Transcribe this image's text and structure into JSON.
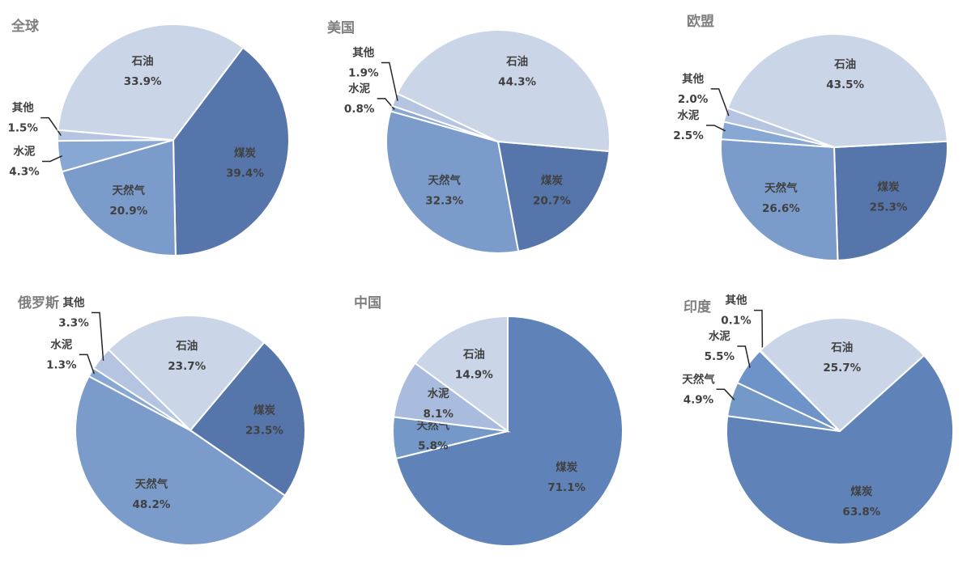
{
  "chart_data": [
    {
      "type": "pie",
      "title": "全球",
      "startangle": 37,
      "categories": [
        "煤炭",
        "天然气",
        "水泥",
        "其他",
        "石油"
      ],
      "values": [
        39.4,
        20.9,
        4.3,
        1.5,
        33.9
      ],
      "value_labels": [
        "39.4%",
        "20.9%",
        "4.3%",
        "1.5%",
        "33.9%"
      ],
      "colors": [
        "#5676ab",
        "#7b9ccb",
        "#88a8d4",
        "#b5c4e0",
        "#cbd5e8"
      ]
    },
    {
      "type": "pie",
      "title": "美国",
      "startangle": 95,
      "categories": [
        "煤炭",
        "天然气",
        "水泥",
        "其他",
        "石油"
      ],
      "values": [
        20.7,
        32.3,
        0.8,
        1.9,
        44.3
      ],
      "value_labels": [
        "20.7%",
        "32.3%",
        "0.8%",
        "1.9%",
        "44.3%"
      ],
      "colors": [
        "#5676ab",
        "#7b9ccb",
        "#88a8d4",
        "#b5c4e0",
        "#cbd5e8"
      ]
    },
    {
      "type": "pie",
      "title": "欧盟",
      "startangle": 87,
      "categories": [
        "煤炭",
        "天然气",
        "水泥",
        "其他",
        "石油"
      ],
      "values": [
        25.3,
        26.6,
        2.5,
        2.0,
        43.5
      ],
      "value_labels": [
        "25.3%",
        "26.6%",
        "2.5%",
        "2.0%",
        "43.5%"
      ],
      "colors": [
        "#5676ab",
        "#7b9ccb",
        "#88a8d4",
        "#b5c4e0",
        "#cbd5e8"
      ]
    },
    {
      "type": "pie",
      "title": "俄罗斯",
      "startangle": 40,
      "categories": [
        "煤炭",
        "天然气",
        "水泥",
        "其他",
        "石油"
      ],
      "values": [
        23.5,
        48.2,
        1.3,
        3.3,
        23.7
      ],
      "value_labels": [
        "23.5%",
        "48.2%",
        "1.3%",
        "3.3%",
        "23.7%"
      ],
      "colors": [
        "#5676ab",
        "#7b9ccb",
        "#88a8d4",
        "#b5c4e0",
        "#cbd5e8"
      ]
    },
    {
      "type": "pie",
      "title": "中国",
      "startangle": 0,
      "categories": [
        "煤炭",
        "天然气",
        "水泥",
        "石油"
      ],
      "values": [
        71.1,
        5.8,
        8.1,
        14.9
      ],
      "value_labels": [
        "71.1%",
        "5.8%",
        "8.1%",
        "14.9%"
      ],
      "colors": [
        "#5f83b8",
        "#7499c9",
        "#a9bcdd",
        "#cbd5e8"
      ]
    },
    {
      "type": "pie",
      "title": "印度",
      "startangle": 48,
      "categories": [
        "煤炭",
        "天然气",
        "水泥",
        "其他",
        "石油"
      ],
      "values": [
        63.8,
        4.9,
        5.5,
        0.1,
        25.7
      ],
      "value_labels": [
        "63.8%",
        "4.9%",
        "5.5%",
        "0.1%",
        "25.7%"
      ],
      "colors": [
        "#5f83b8",
        "#7499c9",
        "#6d93c8",
        "#b5c4e0",
        "#cbd5e8"
      ]
    }
  ]
}
